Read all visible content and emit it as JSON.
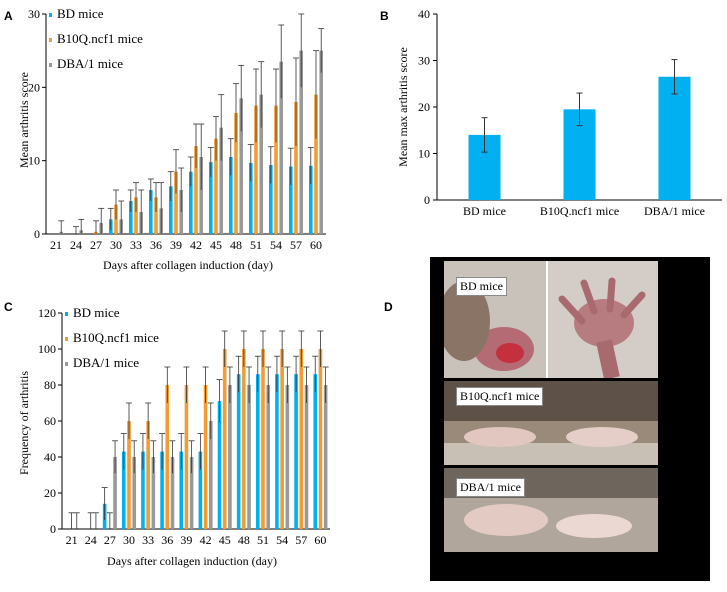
{
  "colors": {
    "bd": "#00b0f0",
    "b10q": "#f39c34",
    "dba": "#999999"
  },
  "panels": {
    "A": {
      "letter": "A",
      "chart_data": {
        "type": "bar",
        "ylabel": "Mean arthritis score",
        "xlabel": "Days after collagen induction (day)",
        "ylim": [
          0,
          30
        ],
        "yticks": [
          0,
          10,
          20,
          30
        ],
        "categories": [
          "21",
          "24",
          "27",
          "30",
          "33",
          "36",
          "39",
          "42",
          "45",
          "48",
          "51",
          "54",
          "57",
          "60"
        ],
        "legend": "top-left",
        "series": [
          {
            "name": "BD mice",
            "values": [
              0,
              0,
              0,
              2,
              4.5,
              6,
              6.5,
              8.5,
              9.8,
              10.5,
              9.7,
              9.4,
              9.2,
              9.3
            ],
            "errors": [
              0,
              0,
              0,
              1.5,
              1.5,
              1.5,
              2,
              2,
              2,
              2.5,
              2.5,
              2.5,
              2.5,
              2.5
            ]
          },
          {
            "name": "B10Q.ncf1 mice",
            "values": [
              0,
              0,
              0.3,
              4,
              5,
              5,
              8.5,
              12,
              13,
              16.5,
              17.5,
              17.5,
              18,
              19
            ],
            "errors": [
              0,
              1,
              1.5,
              2,
              2,
              2,
              3,
              3,
              3,
              4,
              5,
              5,
              6,
              6
            ]
          },
          {
            "name": "DBA/1 mice",
            "values": [
              0.3,
              0.5,
              1.5,
              2,
              3,
              3.5,
              6,
              10.5,
              14.5,
              18.5,
              19,
              23.5,
              25,
              25
            ],
            "errors": [
              1.5,
              1.5,
              2,
              2.5,
              3,
              3.5,
              3,
              4.5,
              4.5,
              4.5,
              4.5,
              5,
              5,
              3
            ]
          }
        ]
      }
    },
    "B": {
      "letter": "B",
      "chart_data": {
        "type": "bar",
        "ylabel": "Mean max arthritis score",
        "ylim": [
          0,
          40
        ],
        "yticks": [
          0,
          10,
          20,
          30,
          40
        ],
        "categories": [
          "BD mice",
          "B10Q.ncf1 mice",
          "DBA/1 mice"
        ],
        "values": [
          14,
          19.5,
          26.5
        ],
        "errors": [
          3.7,
          3.5,
          3.7
        ]
      }
    },
    "C": {
      "letter": "C",
      "chart_data": {
        "type": "bar",
        "ylabel": "Frequency of arthritis",
        "xlabel": "Days after collagen induction (day)",
        "ylim": [
          0,
          120
        ],
        "yticks": [
          0,
          20,
          40,
          60,
          80,
          100,
          120
        ],
        "categories": [
          "21",
          "24",
          "27",
          "30",
          "33",
          "36",
          "39",
          "42",
          "45",
          "48",
          "51",
          "54",
          "57",
          "60"
        ],
        "legend": "top-left",
        "series": [
          {
            "name": "BD mice",
            "values": [
              0,
              0,
              14,
              43,
              43,
              43,
              43,
              43,
              71,
              86,
              86,
              86,
              86,
              86
            ],
            "errors": [
              0,
              0,
              9,
              10,
              10,
              10,
              10,
              10,
              12,
              10,
              10,
              10,
              10,
              10
            ]
          },
          {
            "name": "B10Q.ncf1 mice",
            "values": [
              0,
              0,
              0,
              60,
              60,
              80,
              80,
              80,
              100,
              100,
              100,
              100,
              100,
              100
            ],
            "errors": [
              9,
              9,
              9,
              10,
              10,
              10,
              10,
              10,
              10,
              10,
              10,
              10,
              10,
              10
            ]
          },
          {
            "name": "DBA/1 mice",
            "values": [
              0,
              0,
              40,
              40,
              40,
              40,
              40,
              60,
              80,
              80,
              80,
              80,
              80,
              80
            ],
            "errors": [
              9,
              9,
              9,
              9,
              9,
              9,
              9,
              10,
              10,
              10,
              10,
              10,
              10,
              10
            ]
          }
        ]
      }
    },
    "D": {
      "letter": "D",
      "photos": [
        {
          "label": "BD mice"
        },
        {
          "label": "B10Q.ncf1 mice"
        },
        {
          "label": "DBA/1 mice"
        }
      ]
    }
  }
}
